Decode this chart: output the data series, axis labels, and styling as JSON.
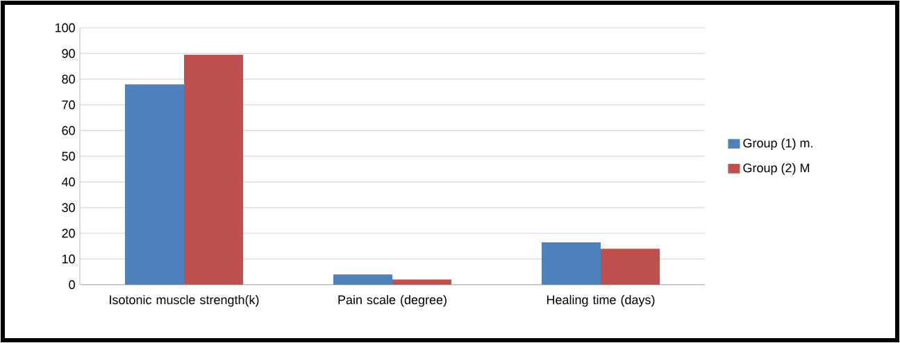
{
  "chart_data": {
    "type": "bar",
    "categories": [
      "Isotonic muscle strength(k)",
      "Pain scale (degree)",
      "Healing time (days)"
    ],
    "series": [
      {
        "name": "Group (1) m.",
        "color": "#4f81bd",
        "values": [
          78,
          4,
          16.5
        ]
      },
      {
        "name": "Group (2) M",
        "color": "#c0504d",
        "values": [
          89.5,
          2,
          14
        ]
      }
    ],
    "ylim": [
      0,
      100
    ],
    "yticks": [
      0,
      10,
      20,
      30,
      40,
      50,
      60,
      70,
      80,
      90,
      100
    ],
    "grid": "y",
    "legend": "right"
  }
}
